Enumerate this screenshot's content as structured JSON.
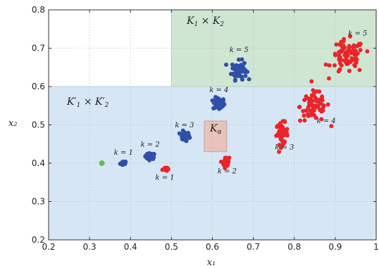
{
  "chart_data": {
    "type": "scatter",
    "title": "",
    "xlabel": "x₁",
    "ylabel": "x₂",
    "xlim": [
      0.2,
      1.0
    ],
    "ylim": [
      0.2,
      0.8
    ],
    "xticks": [
      "0.2",
      "0.3",
      "0.4",
      "0.5",
      "0.6",
      "0.7",
      "0.8",
      "0.9",
      "1"
    ],
    "yticks": [
      "0.2",
      "0.3",
      "0.4",
      "0.5",
      "0.6",
      "0.7",
      "0.8"
    ],
    "grid": true,
    "regions": [
      {
        "name": "K′₁ × K′₂",
        "x": [
          0.2,
          1.0
        ],
        "y": [
          0.2,
          0.6
        ],
        "color": "#d6e6f5"
      },
      {
        "name": "K₁ × K₂",
        "x": [
          0.5,
          1.0
        ],
        "y": [
          0.6,
          0.8
        ],
        "color": "#cfe6d3"
      },
      {
        "name": "Kα",
        "x": [
          0.58,
          0.635
        ],
        "y": [
          0.43,
          0.51
        ],
        "color": "#e8c2bc"
      }
    ],
    "start_point": {
      "x": 0.33,
      "y": 0.4,
      "color": "#5cc05c"
    },
    "series": [
      {
        "color": "#2f4fa8",
        "clusters": [
          {
            "label": "k = 1",
            "x": 0.383,
            "y": 0.4,
            "spread": [
              0.004,
              0.003
            ],
            "n": 18
          },
          {
            "label": "k = 2",
            "x": 0.448,
            "y": 0.418,
            "spread": [
              0.006,
              0.004
            ],
            "n": 30
          },
          {
            "label": "k = 3",
            "x": 0.532,
            "y": 0.47,
            "spread": [
              0.006,
              0.006
            ],
            "n": 40
          },
          {
            "label": "k = 4",
            "x": 0.616,
            "y": 0.555,
            "spread": [
              0.007,
              0.008
            ],
            "n": 55
          },
          {
            "label": "k = 5",
            "x": 0.665,
            "y": 0.643,
            "spread": [
              0.009,
              0.012
            ],
            "n": 70
          }
        ]
      },
      {
        "color": "#e8262a",
        "clusters": [
          {
            "label": "k = 1",
            "x": 0.484,
            "y": 0.385,
            "spread": [
              0.003,
              0.003
            ],
            "n": 14
          },
          {
            "label": "k = 2",
            "x": 0.633,
            "y": 0.402,
            "spread": [
              0.004,
              0.007
            ],
            "n": 30
          },
          {
            "label": "k = 3",
            "x": 0.77,
            "y": 0.477,
            "spread": [
              0.007,
              0.014
            ],
            "n": 55
          },
          {
            "label": "k = 4",
            "x": 0.85,
            "y": 0.548,
            "spread": [
              0.018,
              0.02
            ],
            "n": 70
          },
          {
            "label": "k = 5",
            "x": 0.93,
            "y": 0.677,
            "spread": [
              0.02,
              0.022
            ],
            "n": 80
          }
        ]
      }
    ],
    "label_positions": [
      {
        "text": "k = 1",
        "x": 0.383,
        "y": 0.422
      },
      {
        "text": "k = 2",
        "x": 0.448,
        "y": 0.443
      },
      {
        "text": "k = 3",
        "x": 0.532,
        "y": 0.494
      },
      {
        "text": "k = 4",
        "x": 0.616,
        "y": 0.585
      },
      {
        "text": "k = 5",
        "x": 0.665,
        "y": 0.69
      },
      {
        "text": "k = 1",
        "x": 0.484,
        "y": 0.357
      },
      {
        "text": "k = 2",
        "x": 0.636,
        "y": 0.373
      },
      {
        "text": "k = 3",
        "x": 0.776,
        "y": 0.436
      },
      {
        "text": "k = 4",
        "x": 0.878,
        "y": 0.505
      },
      {
        "text": "k = 5",
        "x": 0.955,
        "y": 0.733
      }
    ]
  }
}
